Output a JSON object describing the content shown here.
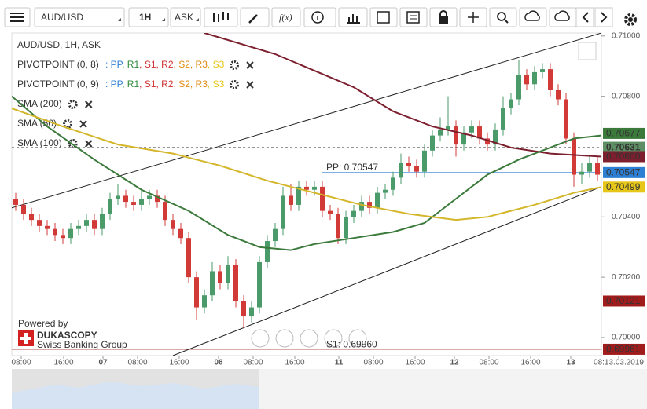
{
  "chart_data": {
    "type": "candlestick",
    "toolbar": {
      "symbol": "AUD/USD",
      "period": "1H",
      "side": "ASK",
      "fx": "f(x)"
    },
    "legend_title": "AUD/USD, 1H, ASK",
    "pivots": [
      {
        "name": "PIVOTPOINT (0, 8)"
      },
      {
        "name": "PIVOTPOINT (0, 9)"
      }
    ],
    "pivot_parts": [
      {
        "text": ": PP",
        "color": "#2d7fd3"
      },
      {
        "text": ", R1",
        "color": "#2e8b3a"
      },
      {
        "text": ", S1",
        "color": "#d03030"
      },
      {
        "text": ", R2",
        "color": "#d03030"
      },
      {
        "text": ", S2",
        "color": "#e08a10"
      },
      {
        "text": ", R3",
        "color": "#e08a10"
      },
      {
        "text": ", S3",
        "color": "#e6c619"
      }
    ],
    "branding": {
      "powered": "Powered by",
      "name": "DUKASCOPY",
      "tagline": "Swiss Banking Group"
    },
    "xlim": [
      -0.5,
      74.5
    ],
    "ylim": [
      0.6994,
      0.7101
    ],
    "grid": false,
    "up_color": "#4a9a6a",
    "down_color": "#d13a37",
    "open": [
      0.7046,
      0.7044,
      0.7041,
      0.7039,
      0.7037,
      0.7036,
      0.7034,
      0.7033,
      0.7036,
      0.7037,
      0.7039,
      0.7036,
      0.7041,
      0.7046,
      0.7047,
      0.7045,
      0.7044,
      0.7046,
      0.7047,
      0.7045,
      0.7039,
      0.7036,
      0.7033,
      0.702,
      0.701,
      0.7014,
      0.7022,
      0.7018,
      0.7024,
      0.7012,
      0.7007,
      0.701,
      0.7025,
      0.7032,
      0.7036,
      0.7047,
      0.7044,
      0.705,
      0.7049,
      0.705,
      0.7042,
      0.7041,
      0.7033,
      0.704,
      0.7042,
      0.7045,
      0.7043,
      0.7048,
      0.7049,
      0.7053,
      0.7058,
      0.7057,
      0.7055,
      0.7062,
      0.7067,
      0.7069,
      0.707,
      0.7064,
      0.7068,
      0.707,
      0.7066,
      0.7064,
      0.7069,
      0.7076,
      0.7079,
      0.7087,
      0.7084,
      0.7088,
      0.7089,
      0.7082,
      0.7079,
      0.7066,
      0.7054,
      0.7055,
      0.7058
    ],
    "high": [
      0.7048,
      0.7046,
      0.7043,
      0.7041,
      0.7039,
      0.7038,
      0.7036,
      0.7038,
      0.7039,
      0.7041,
      0.7041,
      0.7043,
      0.7048,
      0.7051,
      0.7049,
      0.7047,
      0.7049,
      0.7049,
      0.7049,
      0.7047,
      0.7041,
      0.7038,
      0.7035,
      0.7022,
      0.7016,
      0.7025,
      0.7024,
      0.7027,
      0.7026,
      0.7014,
      0.7012,
      0.7027,
      0.7034,
      0.7038,
      0.705,
      0.7051,
      0.7052,
      0.7052,
      0.7052,
      0.7052,
      0.7044,
      0.7043,
      0.7042,
      0.7044,
      0.7047,
      0.7047,
      0.705,
      0.7051,
      0.7055,
      0.7061,
      0.706,
      0.7059,
      0.7064,
      0.7069,
      0.7073,
      0.708,
      0.7072,
      0.707,
      0.7072,
      0.7072,
      0.7068,
      0.7071,
      0.708,
      0.7081,
      0.7092,
      0.7089,
      0.709,
      0.7091,
      0.7091,
      0.7084,
      0.7081,
      0.7068,
      0.7058,
      0.706,
      0.706
    ],
    "low": [
      0.7042,
      0.7039,
      0.7037,
      0.7035,
      0.7034,
      0.7032,
      0.7031,
      0.7031,
      0.7034,
      0.7035,
      0.7034,
      0.7034,
      0.7039,
      0.7044,
      0.7043,
      0.7042,
      0.7042,
      0.7044,
      0.7043,
      0.7037,
      0.7034,
      0.7031,
      0.7018,
      0.7006,
      0.7008,
      0.7012,
      0.7016,
      0.7016,
      0.701,
      0.7003,
      0.7005,
      0.7008,
      0.7023,
      0.703,
      0.7034,
      0.7042,
      0.7042,
      0.7047,
      0.7047,
      0.704,
      0.7039,
      0.7031,
      0.7031,
      0.7038,
      0.704,
      0.7041,
      0.7041,
      0.7046,
      0.7047,
      0.7051,
      0.7055,
      0.7053,
      0.7053,
      0.706,
      0.7065,
      0.7067,
      0.706,
      0.7062,
      0.7066,
      0.7064,
      0.7062,
      0.7062,
      0.7067,
      0.7074,
      0.7077,
      0.7082,
      0.7082,
      0.7086,
      0.708,
      0.7077,
      0.7064,
      0.705,
      0.7051,
      0.7053,
      0.7052
    ],
    "close": [
      0.7044,
      0.7041,
      0.7039,
      0.7037,
      0.7036,
      0.7034,
      0.7033,
      0.7036,
      0.7037,
      0.7039,
      0.7036,
      0.7041,
      0.7046,
      0.7047,
      0.7045,
      0.7044,
      0.7046,
      0.7047,
      0.7045,
      0.7039,
      0.7036,
      0.7033,
      0.702,
      0.701,
      0.7014,
      0.7022,
      0.7018,
      0.7024,
      0.7012,
      0.7007,
      0.701,
      0.7025,
      0.7032,
      0.7036,
      0.7047,
      0.7044,
      0.705,
      0.7049,
      0.705,
      0.7042,
      0.7041,
      0.7033,
      0.704,
      0.7042,
      0.7045,
      0.7043,
      0.7048,
      0.7049,
      0.7053,
      0.7058,
      0.7057,
      0.7055,
      0.7062,
      0.7067,
      0.7069,
      0.707,
      0.7064,
      0.7068,
      0.707,
      0.7066,
      0.7064,
      0.7069,
      0.7076,
      0.7079,
      0.7087,
      0.7084,
      0.7088,
      0.7089,
      0.7082,
      0.7079,
      0.7066,
      0.7054,
      0.7055,
      0.7058,
      0.7054
    ],
    "series": [
      {
        "name": "SMA (200)",
        "color": "#7d1f2e",
        "x": [
          24,
          33,
          43,
          48,
          53,
          58,
          63,
          68,
          74.5
        ],
        "values": [
          0.7101,
          0.7094,
          0.7083,
          0.7075,
          0.707,
          0.7067,
          0.7063,
          0.7061,
          0.706
        ]
      },
      {
        "name": "SMA (50)",
        "color": "#3c7a3c",
        "x": [
          -0.5,
          4,
          10,
          16,
          22,
          27,
          31,
          35,
          38,
          43,
          48,
          52,
          56,
          60,
          64,
          68,
          71,
          74.5
        ],
        "values": [
          0.708,
          0.707,
          0.7059,
          0.7049,
          0.7042,
          0.7034,
          0.703,
          0.7029,
          0.7031,
          0.7033,
          0.7035,
          0.7038,
          0.7046,
          0.7054,
          0.7059,
          0.7063,
          0.7066,
          0.7067
        ]
      },
      {
        "name": "SMA (100)",
        "color": "#d4b62a",
        "x": [
          -0.5,
          6,
          13,
          20,
          26,
          32,
          38,
          44,
          50,
          56,
          60,
          66,
          71,
          74.5
        ],
        "values": [
          0.7076,
          0.707,
          0.7064,
          0.7061,
          0.7057,
          0.7052,
          0.7048,
          0.7044,
          0.7041,
          0.7039,
          0.704,
          0.7044,
          0.7048,
          0.70499
        ]
      }
    ],
    "channels": [
      {
        "color": "#222222",
        "x": [
          -0.5,
          74.5
        ],
        "values": [
          0.7043,
          0.7101
        ]
      },
      {
        "color": "#222222",
        "x": [
          20,
          74.5
        ],
        "values": [
          0.6994,
          0.705
        ]
      }
    ],
    "levels": [
      {
        "label": "0.70677",
        "value": 0.70677,
        "color": "#3c7a3c",
        "text_color": "#ffffff",
        "line": "none"
      },
      {
        "label": "0.70631",
        "value": 0.70631,
        "color": "#5e8f64",
        "text_color": "#ffffff",
        "line": "dashed"
      },
      {
        "label": "0.70600",
        "value": 0.706,
        "color": "#7d1f2e",
        "text_color": "#ffffff",
        "line": "none"
      },
      {
        "label": "0.70547",
        "value": 0.70547,
        "color": "#2d7fd3",
        "text_color": "#ffffff",
        "line": "solid",
        "start": 39
      },
      {
        "label": "0.70499",
        "value": 0.70499,
        "color": "#e6c619",
        "text_color": "#222222",
        "line": "none"
      },
      {
        "label": "0.70121",
        "value": 0.70121,
        "color": "#a01c1c",
        "text_color": "#ffffff",
        "line": "solid"
      },
      {
        "label": "0.69961",
        "value": 0.69961,
        "color": "#a01c1c",
        "text_color": "#ffffff",
        "line": "solid"
      }
    ],
    "annotations": [
      {
        "text": "PP: 0.70547",
        "value": 0.70547,
        "x": 39.5,
        "color": "#2d7fd3"
      },
      {
        "text": "S1: 0.69960",
        "value": 0.6996,
        "x": 39.5,
        "color": "#a01c1c"
      }
    ],
    "yticks": [
      {
        "value": 0.7,
        "label": "0.70000"
      },
      {
        "value": 0.702,
        "label": "0.70200"
      },
      {
        "value": 0.704,
        "label": "0.70400"
      },
      {
        "value": 0.708,
        "label": "0.70800"
      },
      {
        "value": 0.71,
        "label": "0.71000"
      }
    ],
    "xticks": [
      {
        "value": 0.7,
        "label": "08:00"
      },
      {
        "value": 6.1,
        "label": "16:00"
      },
      {
        "value": 11.1,
        "label": "07"
      },
      {
        "value": 15.5,
        "label": "08:00"
      },
      {
        "value": 20.8,
        "label": "16:00"
      },
      {
        "value": 25.8,
        "label": "08"
      },
      {
        "value": 30.2,
        "label": "08:00"
      },
      {
        "value": 35.5,
        "label": "16:00"
      },
      {
        "value": 41.1,
        "label": "11"
      },
      {
        "value": 45.5,
        "label": "08:00"
      },
      {
        "value": 50.8,
        "label": "16:00"
      },
      {
        "value": 55.8,
        "label": "12"
      },
      {
        "value": 60.2,
        "label": "08:00"
      },
      {
        "value": 65.5,
        "label": "16:00"
      },
      {
        "value": 70.6,
        "label": "13"
      },
      {
        "value": 76.7,
        "label": "08:13.03.2019"
      }
    ]
  }
}
